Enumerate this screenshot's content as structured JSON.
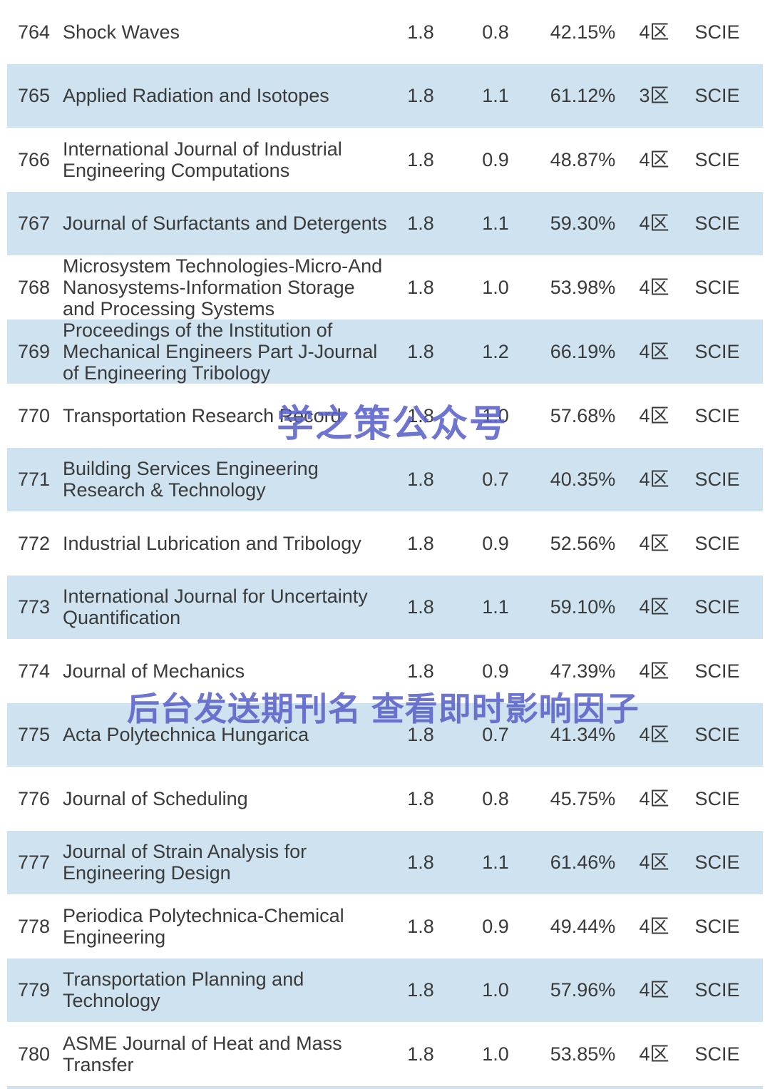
{
  "colors": {
    "row_alt": "#cee3ef",
    "text": "#3a3a3a",
    "watermark": "#5a62ca"
  },
  "watermarks": {
    "center": "学之策公众号",
    "lower": "后台发送期刊名 查看即时影响因子"
  },
  "table": {
    "rows": [
      {
        "rank": "764",
        "name": "Shock Waves",
        "if": "1.8",
        "jci": "0.8",
        "percent": "42.15%",
        "zone": "4区",
        "index": "SCIE"
      },
      {
        "rank": "765",
        "name": "Applied Radiation and Isotopes",
        "if": "1.8",
        "jci": "1.1",
        "percent": "61.12%",
        "zone": "3区",
        "index": "SCIE"
      },
      {
        "rank": "766",
        "name": "International Journal of Industrial Engineering Computations",
        "if": "1.8",
        "jci": "0.9",
        "percent": "48.87%",
        "zone": "4区",
        "index": "SCIE"
      },
      {
        "rank": "767",
        "name": "Journal of Surfactants and Detergents",
        "if": "1.8",
        "jci": "1.1",
        "percent": "59.30%",
        "zone": "4区",
        "index": "SCIE"
      },
      {
        "rank": "768",
        "name": "Microsystem Technologies-Micro-And Nanosystems-Information Storage and Processing Systems",
        "if": "1.8",
        "jci": "1.0",
        "percent": "53.98%",
        "zone": "4区",
        "index": "SCIE"
      },
      {
        "rank": "769",
        "name": "Proceedings of the Institution of Mechanical Engineers Part J-Journal of Engineering Tribology",
        "if": "1.8",
        "jci": "1.2",
        "percent": "66.19%",
        "zone": "4区",
        "index": "SCIE"
      },
      {
        "rank": "770",
        "name": "Transportation Research Record",
        "if": "1.8",
        "jci": "1.0",
        "percent": "57.68%",
        "zone": "4区",
        "index": "SCIE"
      },
      {
        "rank": "771",
        "name": "Building Services Engineering Research & Technology",
        "if": "1.8",
        "jci": "0.7",
        "percent": "40.35%",
        "zone": "4区",
        "index": "SCIE"
      },
      {
        "rank": "772",
        "name": "Industrial Lubrication and Tribology",
        "if": "1.8",
        "jci": "0.9",
        "percent": "52.56%",
        "zone": "4区",
        "index": "SCIE"
      },
      {
        "rank": "773",
        "name": "International Journal for Uncertainty Quantification",
        "if": "1.8",
        "jci": "1.1",
        "percent": "59.10%",
        "zone": "4区",
        "index": "SCIE"
      },
      {
        "rank": "774",
        "name": "Journal of Mechanics",
        "if": "1.8",
        "jci": "0.9",
        "percent": "47.39%",
        "zone": "4区",
        "index": "SCIE"
      },
      {
        "rank": "775",
        "name": "Acta Polytechnica Hungarica",
        "if": "1.8",
        "jci": "0.7",
        "percent": "41.34%",
        "zone": "4区",
        "index": "SCIE"
      },
      {
        "rank": "776",
        "name": "Journal of Scheduling",
        "if": "1.8",
        "jci": "0.8",
        "percent": "45.75%",
        "zone": "4区",
        "index": "SCIE"
      },
      {
        "rank": "777",
        "name": "Journal of Strain Analysis for Engineering Design",
        "if": "1.8",
        "jci": "1.1",
        "percent": "61.46%",
        "zone": "4区",
        "index": "SCIE"
      },
      {
        "rank": "778",
        "name": "Periodica Polytechnica-Chemical Engineering",
        "if": "1.8",
        "jci": "0.9",
        "percent": "49.44%",
        "zone": "4区",
        "index": "SCIE"
      },
      {
        "rank": "779",
        "name": "Transportation Planning and Technology",
        "if": "1.8",
        "jci": "1.0",
        "percent": "57.96%",
        "zone": "4区",
        "index": "SCIE"
      },
      {
        "rank": "780",
        "name": "ASME Journal of Heat and Mass Transfer",
        "if": "1.8",
        "jci": "1.0",
        "percent": "53.85%",
        "zone": "4区",
        "index": "SCIE"
      }
    ]
  }
}
